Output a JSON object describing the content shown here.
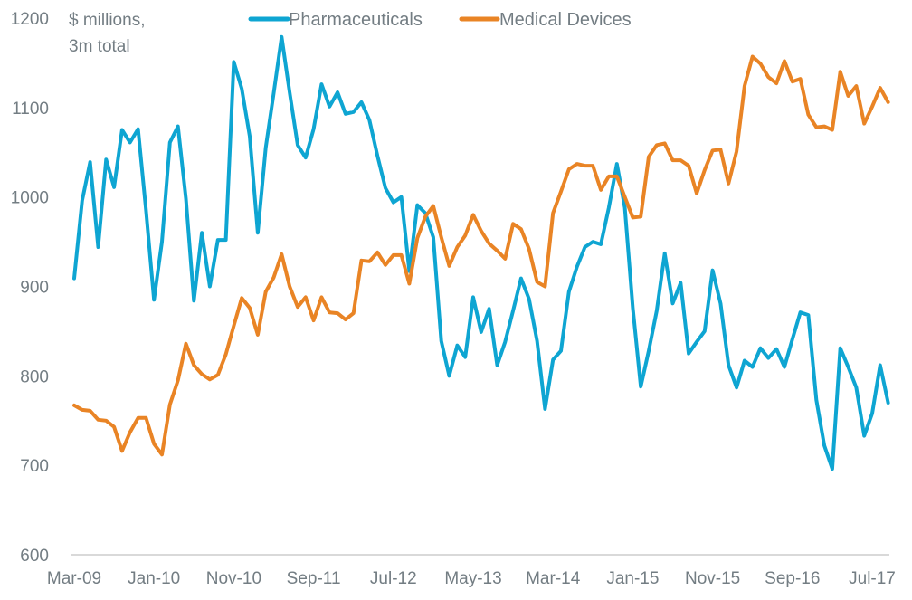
{
  "chart_data": {
    "type": "line",
    "title": "",
    "unit_label_lines": [
      "$ millions,",
      "3m total"
    ],
    "xlabel": "",
    "ylabel": "$ millions, 3m total",
    "ylim": [
      600,
      1200
    ],
    "yticks": [
      600,
      700,
      800,
      900,
      1000,
      1100,
      1200
    ],
    "ytick_labels": [
      "600",
      "700",
      "800",
      "900",
      "1000",
      "1100",
      "1200"
    ],
    "x_start": "Mar-09",
    "x_frequency": "monthly",
    "x_tick_labels": [
      "Mar-09",
      "Jan-10",
      "Nov-10",
      "Sep-11",
      "Jul-12",
      "May-13",
      "Mar-14",
      "Jan-15",
      "Nov-15",
      "Sep-16",
      "Jul-17"
    ],
    "x_tick_indices": [
      0,
      10,
      20,
      30,
      40,
      50,
      60,
      70,
      80,
      90,
      100
    ],
    "grid": false,
    "legend_position": "top",
    "series": [
      {
        "name": "Pharmaceuticals",
        "color": "#0ea5d2",
        "values": [
          909,
          996,
          1039,
          944,
          1042,
          1011,
          1075,
          1061,
          1076,
          985,
          885,
          950,
          1061,
          1079,
          998,
          884,
          960,
          900,
          952,
          952,
          1151,
          1121,
          1068,
          960,
          1055,
          1116,
          1179,
          1117,
          1058,
          1044,
          1076,
          1126,
          1101,
          1117,
          1093,
          1095,
          1106,
          1086,
          1046,
          1010,
          994,
          1000,
          917,
          991,
          982,
          955,
          839,
          800,
          834,
          821,
          888,
          849,
          875,
          812,
          838,
          873,
          909,
          886,
          839,
          763,
          818,
          828,
          894,
          922,
          944,
          950,
          947,
          988,
          1037,
          988,
          876,
          788,
          828,
          873,
          937,
          881,
          904,
          825,
          838,
          850,
          918,
          881,
          812,
          787,
          817,
          810,
          831,
          820,
          830,
          810,
          841,
          871,
          868,
          773,
          722,
          696,
          831,
          810,
          787,
          733,
          758,
          812,
          770
        ]
      },
      {
        "name": "Medical Devices",
        "color": "#e98425",
        "values": [
          767,
          762,
          761,
          751,
          750,
          743,
          716,
          737,
          753,
          753,
          724,
          712,
          768,
          795,
          836,
          812,
          802,
          796,
          801,
          824,
          856,
          887,
          876,
          846,
          894,
          910,
          936,
          900,
          877,
          888,
          862,
          888,
          871,
          870,
          863,
          870,
          929,
          928,
          938,
          924,
          935,
          935,
          903,
          954,
          978,
          990,
          955,
          923,
          944,
          957,
          980,
          962,
          948,
          940,
          931,
          970,
          964,
          942,
          905,
          900,
          982,
          1006,
          1031,
          1037,
          1035,
          1035,
          1008,
          1023,
          1023,
          1000,
          977,
          978,
          1045,
          1058,
          1060,
          1041,
          1041,
          1035,
          1004,
          1030,
          1052,
          1053,
          1015,
          1051,
          1124,
          1157,
          1149,
          1134,
          1127,
          1152,
          1129,
          1132,
          1092,
          1078,
          1079,
          1075,
          1140,
          1113,
          1124,
          1082,
          1101,
          1122,
          1106
        ]
      }
    ]
  }
}
